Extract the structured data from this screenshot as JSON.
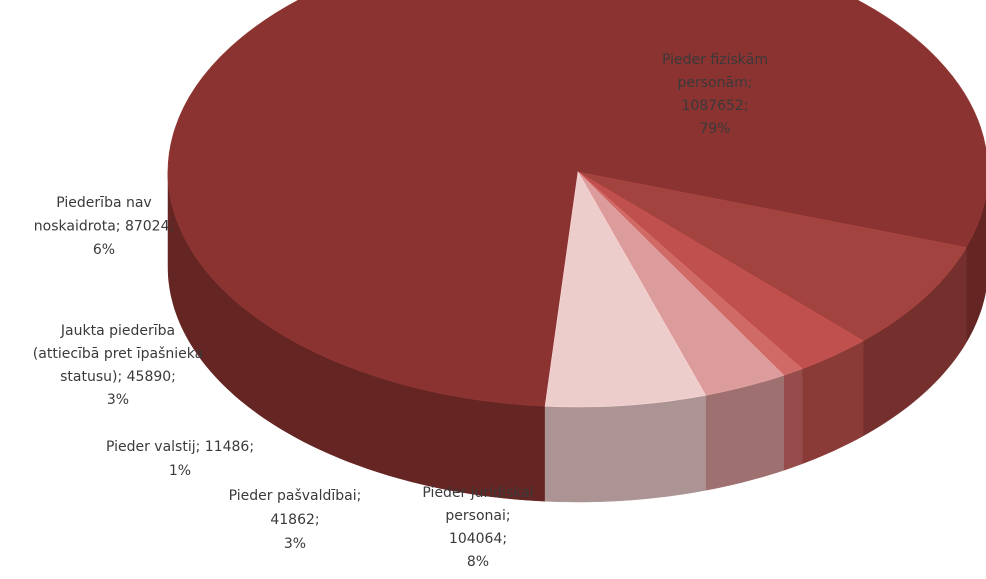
{
  "chart_data": {
    "type": "pie3d",
    "labels": [
      [
        "Pieder fiziskām",
        "personām;",
        "1087652;",
        "79%"
      ],
      [
        "Pieder juridiskai",
        "personai;",
        "104064;",
        "8%"
      ],
      [
        "Pieder pašvaldībai;",
        "41862;",
        "3%"
      ],
      [
        "Pieder valstij; 11486;",
        "1%"
      ],
      [
        "Jaukta piederība",
        "(attiecībā pret īpašnieka",
        "statusu); 45890;",
        "3%"
      ],
      [
        "Piederība nav",
        "noskaidrota; 87024;",
        "6%"
      ]
    ],
    "values": [
      1087652,
      104064,
      41862,
      11486,
      45890,
      87024
    ],
    "colors": [
      "#8b3331",
      "#a3433f",
      "#c0504d",
      "#cf6a67",
      "#dc9c9b",
      "#edcdcc"
    ]
  }
}
